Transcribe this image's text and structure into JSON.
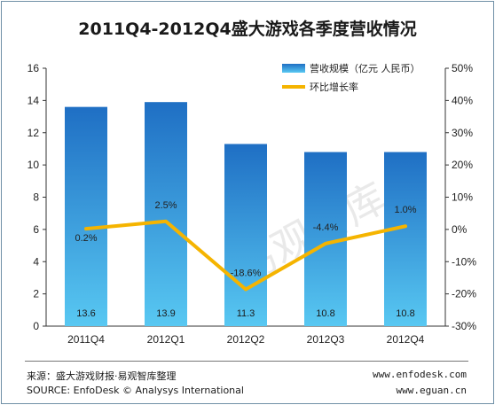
{
  "chart_data": {
    "type": "bar",
    "title": "2011Q4-2012Q4盛大游戏各季度营收情况",
    "categories": [
      "2011Q4",
      "2012Q1",
      "2012Q2",
      "2012Q3",
      "2012Q4"
    ],
    "series": [
      {
        "name": "营收规模（亿元 人民币）",
        "type": "bar",
        "axis": "left",
        "values": [
          13.6,
          13.9,
          11.3,
          10.8,
          10.8
        ],
        "labels": [
          "13.6",
          "13.9",
          "11.3",
          "10.8",
          "10.8"
        ],
        "color": "#2a86d1"
      },
      {
        "name": "环比增长率",
        "type": "line",
        "axis": "right",
        "values": [
          0.2,
          2.5,
          -18.6,
          -4.4,
          1.0
        ],
        "labels": [
          "0.2%",
          "2.5%",
          "-18.6%",
          "-4.4%",
          "1.0%"
        ],
        "color": "#f5b400"
      }
    ],
    "ylim_left": [
      0,
      16
    ],
    "yticks_left": [
      "0",
      "2",
      "4",
      "6",
      "8",
      "10",
      "12",
      "14",
      "16"
    ],
    "ylim_right": [
      -30,
      50
    ],
    "yticks_right": [
      "-30%",
      "-20%",
      "-10%",
      "0%",
      "10%",
      "20%",
      "30%",
      "40%",
      "50%"
    ],
    "legend_position": "top-right",
    "grid": false
  },
  "watermark": "易观智库",
  "footer": {
    "source_cn": "来源：盛大游戏财报·易观智库整理",
    "source_en": "SOURCE: EnfoDesk © Analysys International",
    "url1": "www.enfodesk.com",
    "url2": "www.eguan.cn"
  }
}
